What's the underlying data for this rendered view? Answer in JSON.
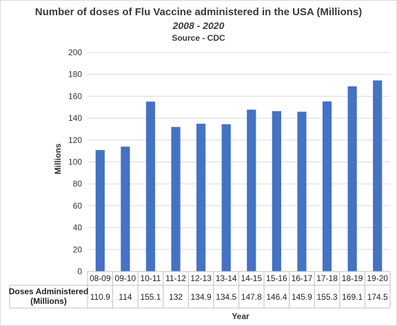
{
  "chart_data": {
    "type": "bar",
    "title": "Number of doses of Flu Vaccine administered  in the USA (Millions)",
    "subtitle": "2008 - 2020",
    "source": "Source - CDC",
    "ylabel": "Millions",
    "xlabel": "Year",
    "ylim": [
      0,
      200
    ],
    "yticks": [
      0,
      20,
      40,
      60,
      80,
      100,
      120,
      140,
      160,
      180,
      200
    ],
    "categories": [
      "08-09",
      "09-10",
      "10-11",
      "11-12",
      "12-13",
      "13-14",
      "14-15",
      "15-16",
      "16-17",
      "17-18",
      "18-19",
      "19-20"
    ],
    "series": [
      {
        "name": "Doses Administered (Millions)",
        "name_lines": [
          "Doses Administered",
          "(Millions)"
        ],
        "values": [
          110.9,
          114,
          155.1,
          132,
          134.9,
          134.5,
          147.8,
          146.4,
          145.9,
          155.3,
          169.1,
          174.5
        ],
        "value_labels": [
          "110.9",
          "114",
          "155.1",
          "132",
          "134.9",
          "134.5",
          "147.8",
          "146.4",
          "145.9",
          "155.3",
          "169.1",
          "174.5"
        ]
      }
    ],
    "grid": true,
    "data_table": true,
    "colors": {
      "bar": "#4472C4",
      "grid": "#d9d9d9"
    }
  }
}
